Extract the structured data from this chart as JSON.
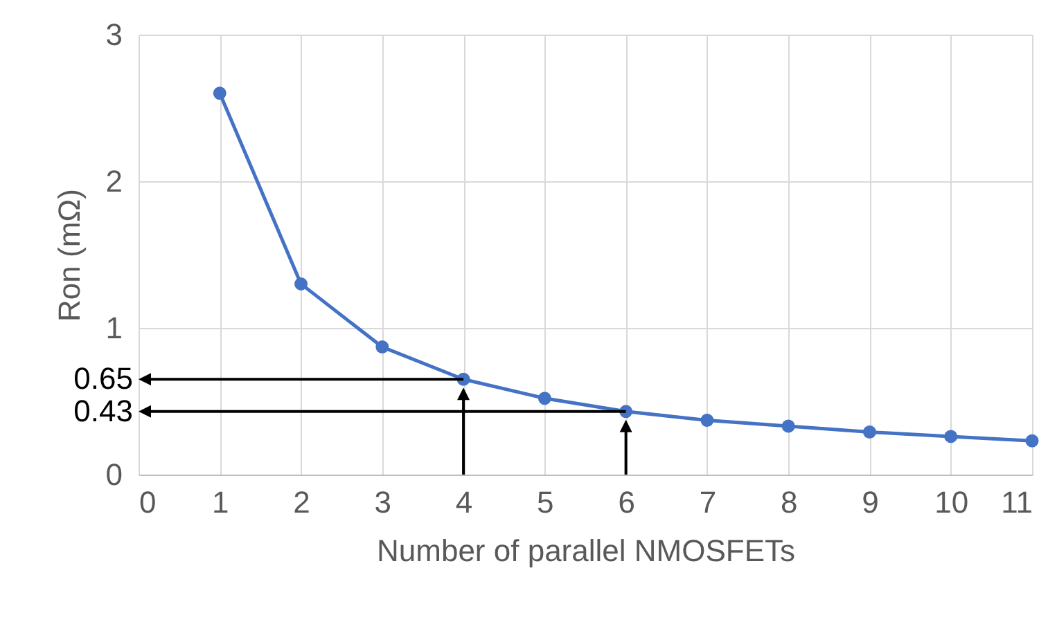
{
  "chart_data": {
    "type": "line",
    "xlabel": "Number of parallel NMOSFETs",
    "ylabel": "Ron (mΩ)",
    "x": [
      1,
      2,
      3,
      4,
      5,
      6,
      7,
      8,
      9,
      10,
      11
    ],
    "series": [
      {
        "color": "#4472c4",
        "values": [
          2.6,
          1.3,
          0.87,
          0.65,
          0.52,
          0.43,
          0.37,
          0.33,
          0.29,
          0.26,
          0.23
        ]
      }
    ],
    "xlim": [
      0,
      11
    ],
    "xticks": [
      0,
      1,
      2,
      3,
      4,
      5,
      6,
      7,
      8,
      9,
      10,
      11
    ],
    "ylim": [
      0,
      3
    ],
    "yticks": [
      0,
      1,
      2,
      3
    ],
    "grid": true,
    "marker": "circle",
    "line_style": "solid",
    "annotations": [
      {
        "text": "0.65",
        "x": 4,
        "y": 0.65
      },
      {
        "text": "0.43",
        "x": 6,
        "y": 0.43
      }
    ]
  }
}
